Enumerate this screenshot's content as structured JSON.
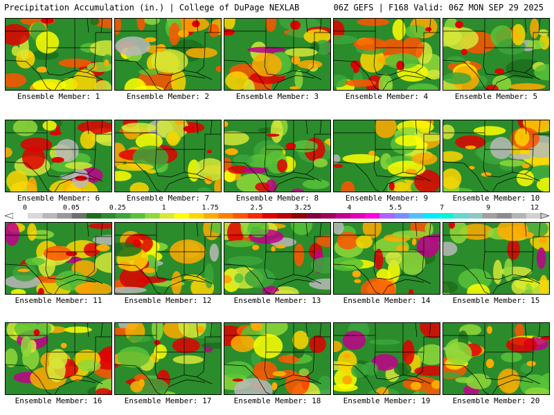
{
  "header": {
    "left_title": "Precipitation Accumulation (in.) | College of DuPage NEXLAB",
    "right_title": "06Z GEFS | F168 Valid: 06Z MON SEP 29 2025"
  },
  "colorbar": {
    "tick_labels": [
      "0",
      "0.05",
      "0.25",
      "1",
      "1.75",
      "2.5",
      "3.25",
      "4",
      "5.5",
      "7",
      "9",
      "12"
    ],
    "colors": [
      "#ffffff",
      "#d8d8d8",
      "#b8b8b8",
      "#989898",
      "#6e6e6e",
      "#1c6e1c",
      "#2b8c2b",
      "#3ba63b",
      "#58c238",
      "#8fd83a",
      "#d6e838",
      "#ffff00",
      "#ffd500",
      "#ffaa00",
      "#ff7f00",
      "#ff5500",
      "#f52a00",
      "#e00000",
      "#b80000",
      "#8f0000",
      "#800040",
      "#a0005f",
      "#c0008a",
      "#e000b8",
      "#ff00e0",
      "#b060ff",
      "#7a8cff",
      "#4fc0ff",
      "#00e8ff",
      "#00f5d8",
      "#60d8d0",
      "#8cc8c8",
      "#a0a0a0",
      "#8c8c8c",
      "#b4b4b4",
      "#d0d0d0"
    ]
  },
  "panels": [
    {
      "label": "Ensemble Member: 1"
    },
    {
      "label": "Ensemble Member: 2"
    },
    {
      "label": "Ensemble Member: 3"
    },
    {
      "label": "Ensemble Member: 4"
    },
    {
      "label": "Ensemble Member: 5"
    },
    {
      "label": "Ensemble Member: 6"
    },
    {
      "label": "Ensemble Member: 7"
    },
    {
      "label": "Ensemble Member: 8"
    },
    {
      "label": "Ensemble Member: 9"
    },
    {
      "label": "Ensemble Member: 10"
    },
    {
      "label": "Ensemble Member: 11"
    },
    {
      "label": "Ensemble Member: 12"
    },
    {
      "label": "Ensemble Member: 13"
    },
    {
      "label": "Ensemble Member: 14"
    },
    {
      "label": "Ensemble Member: 15"
    },
    {
      "label": "Ensemble Member: 16"
    },
    {
      "label": "Ensemble Member: 17"
    },
    {
      "label": "Ensemble Member: 18"
    },
    {
      "label": "Ensemble Member: 19"
    },
    {
      "label": "Ensemble Member: 20"
    }
  ]
}
